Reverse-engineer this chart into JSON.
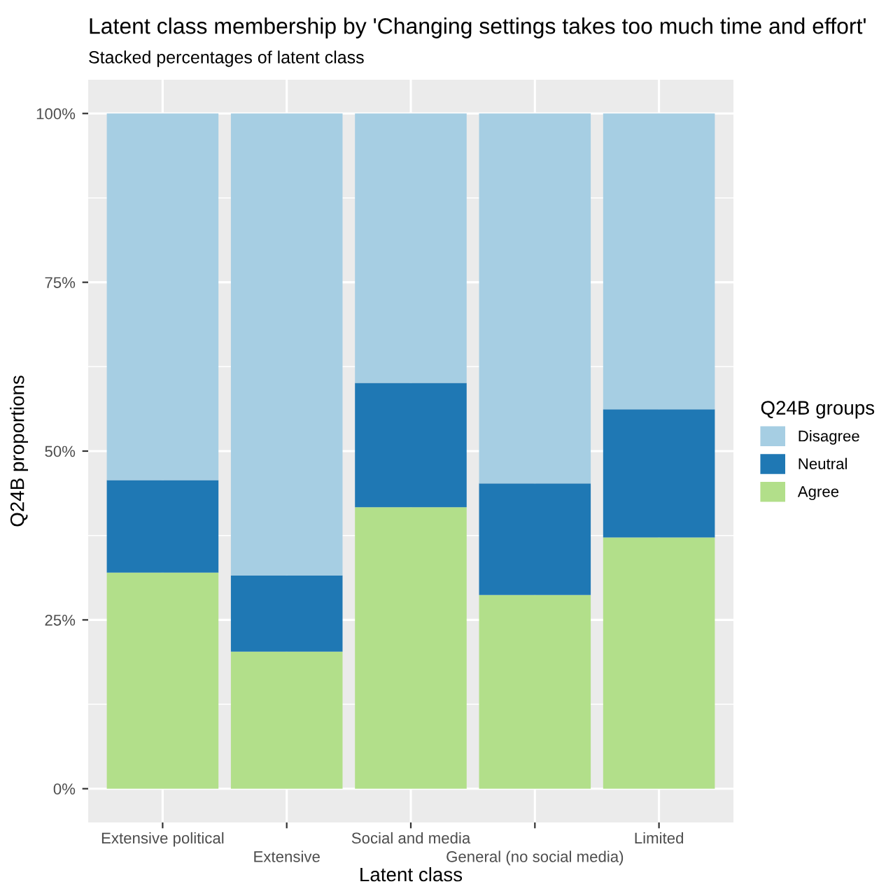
{
  "chart_data": {
    "type": "bar",
    "stacked": true,
    "title": "Latent class membership by 'Changing settings takes too much time and effort'",
    "subtitle": "Stacked percentages of latent class",
    "xlabel": "Latent class",
    "ylabel": "Q24B proportions",
    "legend_title": "Q24B groups",
    "categories": [
      "Extensive political",
      "Extensive",
      "Social and media",
      "General (no social media)",
      "Limited"
    ],
    "series": [
      {
        "name": "Agree",
        "color": "#b2df8a",
        "values": [
          32.0,
          20.3,
          41.7,
          28.7,
          37.2
        ]
      },
      {
        "name": "Neutral",
        "color": "#1f78b4",
        "values": [
          13.7,
          11.3,
          18.4,
          16.5,
          19.0
        ]
      },
      {
        "name": "Disagree",
        "color": "#a6cee3",
        "values": [
          54.3,
          68.4,
          39.9,
          54.8,
          43.8
        ]
      }
    ],
    "ylim": [
      -5,
      105
    ],
    "yticks": [
      {
        "value": 0,
        "label": "0%"
      },
      {
        "value": 25,
        "label": "25%"
      },
      {
        "value": 50,
        "label": "50%"
      },
      {
        "value": 75,
        "label": "75%"
      },
      {
        "value": 100,
        "label": "100%"
      }
    ],
    "grid": true,
    "legend": "right"
  }
}
